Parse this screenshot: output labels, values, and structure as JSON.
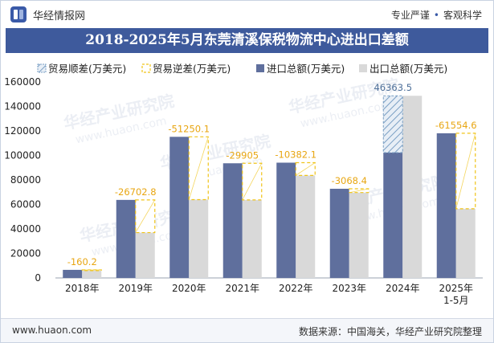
{
  "header": {
    "brand": "华经情报网",
    "slogan_left": "专业严谨",
    "slogan_right": "客观科学"
  },
  "title": "2018-2025年5月东莞清溪保税物流中心进出口差额",
  "legend": [
    {
      "label": "贸易顺差(万美元)",
      "kind": "surplus",
      "icon": "hatched-square-icon"
    },
    {
      "label": "贸易逆差(万美元)",
      "kind": "deficit",
      "icon": "dashed-square-icon"
    },
    {
      "label": "进口总额(万美元)",
      "kind": "import",
      "icon": "solid-square-icon"
    },
    {
      "label": "出口总额(万美元)",
      "kind": "export",
      "icon": "solid-square-icon"
    }
  ],
  "colors": {
    "import": "#5f6f9d",
    "export": "#d9d9d9",
    "surplus": "#7a9fc4",
    "deficit": "#f0c419",
    "title_bg": "#3e5a9c"
  },
  "watermarks": [
    "华经产业研究院",
    "www.huaon.com"
  ],
  "chart_data": {
    "type": "bar",
    "categories": [
      "2018年",
      "2019年",
      "2020年",
      "2021年",
      "2022年",
      "2023年",
      "2024年",
      "2025年\n1-5月"
    ],
    "series": [
      {
        "name": "进口总额(万美元)",
        "values": [
          6600,
          63700,
          115200,
          93600,
          94100,
          72800,
          102300,
          118100
        ]
      },
      {
        "name": "出口总额(万美元)",
        "values": [
          6440,
          37000,
          63950,
          63700,
          83700,
          69700,
          148700,
          56500
        ]
      }
    ],
    "balance": [
      {
        "category": "2018年",
        "value": -160.2,
        "label": "-160.2"
      },
      {
        "category": "2019年",
        "value": -26702.8,
        "label": "-26702.8"
      },
      {
        "category": "2020年",
        "value": -51250.1,
        "label": "-51250.1"
      },
      {
        "category": "2021年",
        "value": -29905,
        "label": "-29905"
      },
      {
        "category": "2022年",
        "value": -10382.1,
        "label": "-10382.1"
      },
      {
        "category": "2023年",
        "value": -3068.4,
        "label": "-3068.4"
      },
      {
        "category": "2024年",
        "value": 46363.5,
        "label": "46363.5"
      },
      {
        "category": "2025年\n1-5月",
        "value": -61554.6,
        "label": "-61554.6"
      }
    ],
    "ylim": [
      0,
      160000
    ],
    "yticks": [
      0,
      20000,
      40000,
      60000,
      80000,
      100000,
      120000,
      140000,
      160000
    ],
    "grid": false,
    "legend_position": "top"
  },
  "footer": {
    "website": "www.huaon.com",
    "source": "数据来源：中国海关，华经产业研究院整理"
  }
}
